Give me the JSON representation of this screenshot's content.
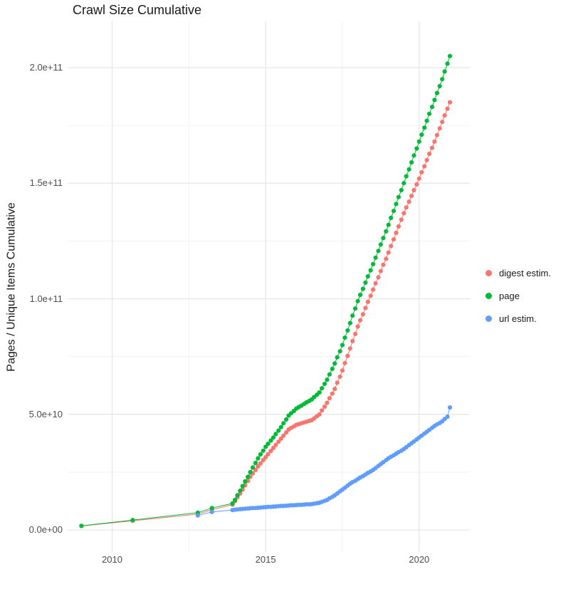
{
  "page": {
    "background": "#ffffff"
  },
  "chart": {
    "title": "Crawl Size Cumulative",
    "y_axis_label": "Pages / Unique Items Cumulative"
  },
  "legend": {
    "items": [
      {
        "label": "digest estim.",
        "color": "#F8766D"
      },
      {
        "label": "page",
        "color": "#00BA38"
      },
      {
        "label": "url estim.",
        "color": "#619CFF"
      }
    ]
  },
  "chart_data": {
    "type": "scatter",
    "title": "Crawl Size Cumulative",
    "xlabel": "",
    "ylabel": "Pages / Unique Items Cumulative",
    "unit": "values in billions (1e9) of pages / unique items",
    "grid": true,
    "legend_position": "right",
    "x_domain": [
      2008.55,
      2021.65
    ],
    "y_domain": [
      -9.5,
      220
    ],
    "x_ticks": [
      {
        "value": 2010,
        "label": "2010"
      },
      {
        "value": 2015,
        "label": "2015"
      },
      {
        "value": 2020,
        "label": "2020"
      }
    ],
    "x_minor_ticks": [
      2012.5,
      2017.5
    ],
    "y_ticks": [
      {
        "value": 0,
        "label": "0.0e+00"
      },
      {
        "value": 50,
        "label": "5.0e+10"
      },
      {
        "value": 100,
        "label": "1.0e+11"
      },
      {
        "value": 150,
        "label": "1.5e+11"
      },
      {
        "value": 200,
        "label": "2.0e+11"
      }
    ],
    "y_minor_ticks": [
      25,
      75,
      125,
      175
    ],
    "series": [
      {
        "name": "digest estim.",
        "color": "#F8766D",
        "points": [
          [
            2009.0,
            1.7
          ],
          [
            2010.67,
            4.0
          ],
          [
            2012.79,
            6.9
          ],
          [
            2013.25,
            8.8
          ],
          [
            2013.92,
            11.0
          ],
          [
            2014.0,
            12.5
          ],
          [
            2014.08,
            14.2
          ],
          [
            2014.17,
            15.8
          ],
          [
            2014.25,
            17.5
          ],
          [
            2014.33,
            19.3
          ],
          [
            2014.42,
            21.2
          ],
          [
            2014.5,
            23.0
          ],
          [
            2014.58,
            24.5
          ],
          [
            2014.67,
            26.0
          ],
          [
            2014.75,
            27.5
          ],
          [
            2014.83,
            28.8
          ],
          [
            2014.92,
            30.2
          ],
          [
            2015.0,
            31.5
          ],
          [
            2015.08,
            32.8
          ],
          [
            2015.17,
            34.2
          ],
          [
            2015.25,
            35.5
          ],
          [
            2015.33,
            36.8
          ],
          [
            2015.42,
            38.2
          ],
          [
            2015.5,
            39.5
          ],
          [
            2015.58,
            40.8
          ],
          [
            2015.67,
            42.2
          ],
          [
            2015.75,
            43.5
          ],
          [
            2015.83,
            44.2
          ],
          [
            2015.92,
            44.8
          ],
          [
            2016.0,
            45.5
          ],
          [
            2016.08,
            45.8
          ],
          [
            2016.17,
            46.2
          ],
          [
            2016.25,
            46.5
          ],
          [
            2016.33,
            46.8
          ],
          [
            2016.42,
            47.2
          ],
          [
            2016.5,
            47.5
          ],
          [
            2016.58,
            48.3
          ],
          [
            2016.67,
            49.2
          ],
          [
            2016.75,
            50.0
          ],
          [
            2016.83,
            51.7
          ],
          [
            2016.92,
            53.3
          ],
          [
            2017.0,
            55.0
          ],
          [
            2017.08,
            57.0
          ],
          [
            2017.17,
            59.0
          ],
          [
            2017.25,
            61.0
          ],
          [
            2017.33,
            63.7
          ],
          [
            2017.42,
            66.3
          ],
          [
            2017.5,
            69.0
          ],
          [
            2017.58,
            72.2
          ],
          [
            2017.67,
            75.3
          ],
          [
            2017.75,
            78.5
          ],
          [
            2017.83,
            81.7
          ],
          [
            2017.92,
            84.8
          ],
          [
            2018.0,
            88.0
          ],
          [
            2018.08,
            90.7
          ],
          [
            2018.17,
            93.3
          ],
          [
            2018.25,
            96.0
          ],
          [
            2018.33,
            98.7
          ],
          [
            2018.42,
            101.3
          ],
          [
            2018.5,
            104.0
          ],
          [
            2018.58,
            106.7
          ],
          [
            2018.67,
            109.3
          ],
          [
            2018.75,
            112.0
          ],
          [
            2018.83,
            114.7
          ],
          [
            2018.92,
            117.3
          ],
          [
            2019.0,
            120.0
          ],
          [
            2019.08,
            122.8
          ],
          [
            2019.17,
            125.7
          ],
          [
            2019.25,
            128.5
          ],
          [
            2019.33,
            131.3
          ],
          [
            2019.42,
            134.2
          ],
          [
            2019.5,
            137.0
          ],
          [
            2019.58,
            139.5
          ],
          [
            2019.67,
            142.0
          ],
          [
            2019.75,
            144.5
          ],
          [
            2019.83,
            147.0
          ],
          [
            2019.92,
            149.5
          ],
          [
            2020.0,
            152.0
          ],
          [
            2020.08,
            154.7
          ],
          [
            2020.17,
            157.3
          ],
          [
            2020.25,
            160.0
          ],
          [
            2020.33,
            162.7
          ],
          [
            2020.42,
            165.3
          ],
          [
            2020.5,
            168.0
          ],
          [
            2020.58,
            170.8
          ],
          [
            2020.67,
            173.7
          ],
          [
            2020.75,
            176.5
          ],
          [
            2020.83,
            179.3
          ],
          [
            2020.92,
            182.2
          ],
          [
            2021.0,
            185.0
          ]
        ]
      },
      {
        "name": "page",
        "color": "#00BA38",
        "points": [
          [
            2009.0,
            1.8
          ],
          [
            2010.67,
            4.3
          ],
          [
            2012.79,
            7.5
          ],
          [
            2013.25,
            9.5
          ],
          [
            2013.92,
            11.5
          ],
          [
            2014.0,
            13.0
          ],
          [
            2014.08,
            15.0
          ],
          [
            2014.17,
            17.0
          ],
          [
            2014.25,
            19.0
          ],
          [
            2014.33,
            21.0
          ],
          [
            2014.42,
            23.0
          ],
          [
            2014.5,
            25.0
          ],
          [
            2014.58,
            27.0
          ],
          [
            2014.67,
            29.0
          ],
          [
            2014.75,
            31.0
          ],
          [
            2014.83,
            32.7
          ],
          [
            2014.92,
            34.3
          ],
          [
            2015.0,
            36.0
          ],
          [
            2015.08,
            37.3
          ],
          [
            2015.17,
            38.7
          ],
          [
            2015.25,
            40.0
          ],
          [
            2015.33,
            41.5
          ],
          [
            2015.42,
            43.0
          ],
          [
            2015.5,
            44.5
          ],
          [
            2015.58,
            46.2
          ],
          [
            2015.67,
            47.8
          ],
          [
            2015.75,
            49.5
          ],
          [
            2015.83,
            50.5
          ],
          [
            2015.92,
            51.5
          ],
          [
            2016.0,
            52.5
          ],
          [
            2016.08,
            53.2
          ],
          [
            2016.17,
            53.8
          ],
          [
            2016.25,
            54.5
          ],
          [
            2016.33,
            55.2
          ],
          [
            2016.42,
            55.8
          ],
          [
            2016.5,
            56.5
          ],
          [
            2016.58,
            57.5
          ],
          [
            2016.67,
            58.5
          ],
          [
            2016.75,
            59.5
          ],
          [
            2016.83,
            61.3
          ],
          [
            2016.92,
            63.2
          ],
          [
            2017.0,
            65.0
          ],
          [
            2017.08,
            67.3
          ],
          [
            2017.17,
            69.7
          ],
          [
            2017.25,
            72.0
          ],
          [
            2017.33,
            74.7
          ],
          [
            2017.42,
            77.3
          ],
          [
            2017.5,
            80.0
          ],
          [
            2017.58,
            83.2
          ],
          [
            2017.67,
            86.3
          ],
          [
            2017.75,
            89.5
          ],
          [
            2017.83,
            92.7
          ],
          [
            2017.92,
            95.8
          ],
          [
            2018.0,
            99.0
          ],
          [
            2018.08,
            101.7
          ],
          [
            2018.17,
            104.3
          ],
          [
            2018.25,
            107.0
          ],
          [
            2018.33,
            109.7
          ],
          [
            2018.42,
            112.3
          ],
          [
            2018.5,
            115.0
          ],
          [
            2018.58,
            117.8
          ],
          [
            2018.67,
            120.7
          ],
          [
            2018.75,
            123.5
          ],
          [
            2018.83,
            126.3
          ],
          [
            2018.92,
            129.2
          ],
          [
            2019.0,
            132.0
          ],
          [
            2019.08,
            135.0
          ],
          [
            2019.17,
            138.0
          ],
          [
            2019.25,
            141.0
          ],
          [
            2019.33,
            144.0
          ],
          [
            2019.42,
            147.0
          ],
          [
            2019.5,
            150.0
          ],
          [
            2019.58,
            153.0
          ],
          [
            2019.67,
            156.0
          ],
          [
            2019.75,
            159.0
          ],
          [
            2019.83,
            162.0
          ],
          [
            2019.92,
            165.0
          ],
          [
            2020.0,
            168.0
          ],
          [
            2020.08,
            171.0
          ],
          [
            2020.17,
            174.0
          ],
          [
            2020.25,
            177.0
          ],
          [
            2020.33,
            180.0
          ],
          [
            2020.42,
            183.0
          ],
          [
            2020.5,
            186.0
          ],
          [
            2020.58,
            189.0
          ],
          [
            2020.67,
            192.0
          ],
          [
            2020.75,
            195.0
          ],
          [
            2020.83,
            198.3
          ],
          [
            2020.92,
            201.7
          ],
          [
            2021.0,
            205.0
          ]
        ]
      },
      {
        "name": "url estim.",
        "color": "#619CFF",
        "points": [
          [
            2012.79,
            6.3
          ],
          [
            2013.25,
            7.8
          ],
          [
            2013.92,
            8.6
          ],
          [
            2014.0,
            8.8
          ],
          [
            2014.08,
            8.9
          ],
          [
            2014.17,
            9.0
          ],
          [
            2014.25,
            9.1
          ],
          [
            2014.33,
            9.2
          ],
          [
            2014.42,
            9.3
          ],
          [
            2014.5,
            9.4
          ],
          [
            2014.58,
            9.5
          ],
          [
            2014.67,
            9.5
          ],
          [
            2014.75,
            9.6
          ],
          [
            2014.83,
            9.7
          ],
          [
            2014.92,
            9.8
          ],
          [
            2015.0,
            9.9
          ],
          [
            2015.08,
            10.0
          ],
          [
            2015.17,
            10.0
          ],
          [
            2015.25,
            10.1
          ],
          [
            2015.33,
            10.2
          ],
          [
            2015.42,
            10.3
          ],
          [
            2015.5,
            10.4
          ],
          [
            2015.58,
            10.4
          ],
          [
            2015.67,
            10.5
          ],
          [
            2015.75,
            10.6
          ],
          [
            2015.83,
            10.7
          ],
          [
            2015.92,
            10.7
          ],
          [
            2016.0,
            10.8
          ],
          [
            2016.08,
            10.9
          ],
          [
            2016.17,
            10.9
          ],
          [
            2016.25,
            11.0
          ],
          [
            2016.33,
            11.1
          ],
          [
            2016.42,
            11.1
          ],
          [
            2016.5,
            11.2
          ],
          [
            2016.58,
            11.4
          ],
          [
            2016.67,
            11.6
          ],
          [
            2016.75,
            11.8
          ],
          [
            2016.83,
            12.2
          ],
          [
            2016.92,
            12.6
          ],
          [
            2017.0,
            13.0
          ],
          [
            2017.08,
            13.7
          ],
          [
            2017.17,
            14.3
          ],
          [
            2017.25,
            15.0
          ],
          [
            2017.33,
            15.8
          ],
          [
            2017.42,
            16.7
          ],
          [
            2017.5,
            17.5
          ],
          [
            2017.58,
            18.3
          ],
          [
            2017.67,
            19.2
          ],
          [
            2017.75,
            20.0
          ],
          [
            2017.83,
            20.7
          ],
          [
            2017.92,
            21.3
          ],
          [
            2018.0,
            22.0
          ],
          [
            2018.08,
            22.7
          ],
          [
            2018.17,
            23.3
          ],
          [
            2018.25,
            24.0
          ],
          [
            2018.33,
            24.7
          ],
          [
            2018.42,
            25.3
          ],
          [
            2018.5,
            26.0
          ],
          [
            2018.58,
            26.8
          ],
          [
            2018.67,
            27.7
          ],
          [
            2018.75,
            28.5
          ],
          [
            2018.83,
            29.3
          ],
          [
            2018.92,
            30.2
          ],
          [
            2019.0,
            31.0
          ],
          [
            2019.08,
            31.7
          ],
          [
            2019.17,
            32.3
          ],
          [
            2019.25,
            33.0
          ],
          [
            2019.33,
            33.7
          ],
          [
            2019.42,
            34.3
          ],
          [
            2019.5,
            35.0
          ],
          [
            2019.58,
            35.8
          ],
          [
            2019.67,
            36.7
          ],
          [
            2019.75,
            37.5
          ],
          [
            2019.83,
            38.3
          ],
          [
            2019.92,
            39.2
          ],
          [
            2020.0,
            40.0
          ],
          [
            2020.08,
            40.8
          ],
          [
            2020.17,
            41.7
          ],
          [
            2020.25,
            42.5
          ],
          [
            2020.33,
            43.3
          ],
          [
            2020.42,
            44.2
          ],
          [
            2020.5,
            45.0
          ],
          [
            2020.58,
            45.7
          ],
          [
            2020.67,
            46.3
          ],
          [
            2020.75,
            47.0
          ],
          [
            2020.83,
            48.0
          ],
          [
            2020.92,
            49.0
          ],
          [
            2021.0,
            53.0
          ]
        ]
      }
    ],
    "style": {
      "major_grid_color": "#e3e3e3",
      "minor_grid_color": "#f1f1f1",
      "point_radius": 3.1
    }
  }
}
